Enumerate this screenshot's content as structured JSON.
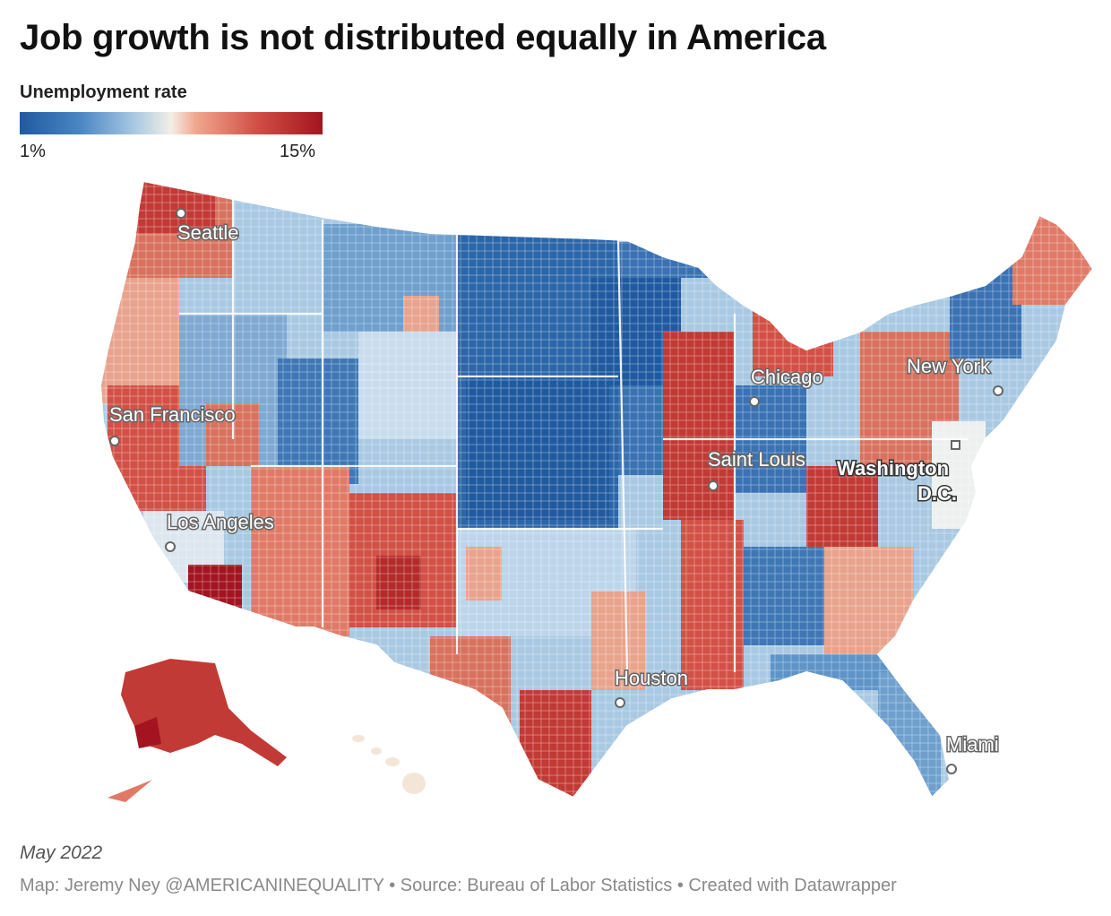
{
  "title": "Job growth is not distributed equally in America",
  "legend": {
    "title": "Unemployment rate",
    "min_label": "1%",
    "max_label": "15%",
    "colors": [
      "#1f5aa0",
      "#4a86c3",
      "#a9c9e3",
      "#f4eee6",
      "#f1a890",
      "#d25046",
      "#a31420"
    ]
  },
  "cities": [
    {
      "name": "Seattle"
    },
    {
      "name": "San Francisco"
    },
    {
      "name": "Los Angeles"
    },
    {
      "name": "Houston"
    },
    {
      "name": "Chicago"
    },
    {
      "name": "Saint Louis"
    },
    {
      "name": "Washington"
    },
    {
      "name": "D.C."
    },
    {
      "name": "New York"
    },
    {
      "name": "Miami"
    }
  ],
  "footer": {
    "date": "May 2022",
    "source": "Map: Jeremy Ney @AMERICANINEQUALITY • Source: Bureau of Labor Statistics • Created with Datawrapper"
  }
}
